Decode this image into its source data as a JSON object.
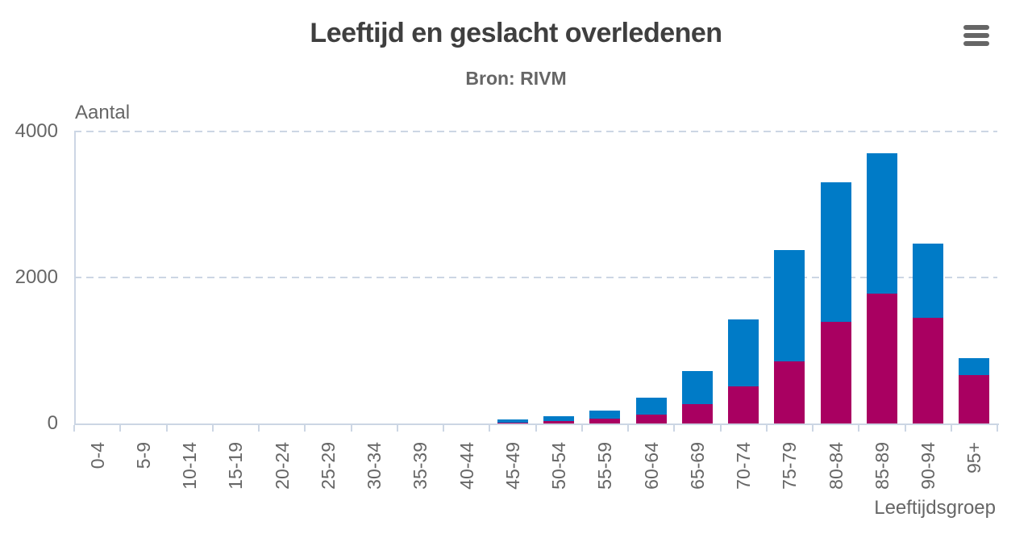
{
  "header": {
    "title": "Leeftijd en geslacht overledenen",
    "subtitle": "Bron: RIVM",
    "menu_icon": "hamburger-menu-icon"
  },
  "axes": {
    "y_title": "Aantal",
    "x_title": "Leeftijdsgroep"
  },
  "colors": {
    "blue": "#007bc7",
    "magenta": "#a90061",
    "grid": "#ccd6e4",
    "axis_text": "#666666",
    "title_text": "#3f3f3f"
  },
  "chart_data": {
    "type": "bar",
    "stacked": true,
    "title": "Leeftijd en geslacht overledenen",
    "subtitle": "Bron: RIVM",
    "xlabel": "Leeftijdsgroep",
    "ylabel": "Aantal",
    "ylim": [
      0,
      4000
    ],
    "yticks": [
      0,
      2000,
      4000
    ],
    "grid": "horizontal dashed at 2000 and 4000",
    "legend": "none",
    "categories": [
      "0-4",
      "5-9",
      "10-14",
      "15-19",
      "20-24",
      "25-29",
      "30-34",
      "35-39",
      "40-44",
      "45-49",
      "50-54",
      "55-59",
      "60-64",
      "65-69",
      "70-74",
      "75-79",
      "80-84",
      "85-89",
      "90-94",
      "95+"
    ],
    "series": [
      {
        "name": "magenta-bottom",
        "color": "#a90061",
        "values": [
          0,
          0,
          0,
          0,
          0,
          0,
          0,
          0,
          0,
          10,
          35,
          65,
          120,
          260,
          505,
          850,
          1395,
          1775,
          1445,
          665
        ]
      },
      {
        "name": "blue-top",
        "color": "#007bc7",
        "values": [
          0,
          0,
          0,
          0,
          0,
          0,
          0,
          0,
          0,
          45,
          65,
          115,
          230,
          460,
          925,
          1530,
          1905,
          1925,
          1015,
          225
        ]
      }
    ],
    "stack_totals": [
      0,
      0,
      0,
      0,
      0,
      0,
      0,
      0,
      0,
      55,
      100,
      180,
      350,
      720,
      1430,
      2380,
      3300,
      3700,
      2460,
      890
    ]
  }
}
